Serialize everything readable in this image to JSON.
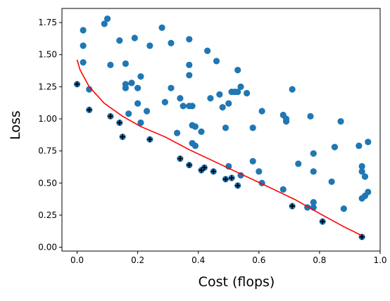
{
  "chart_data": {
    "type": "scatter",
    "xlabel": "Cost (flops)",
    "ylabel": "Loss",
    "xlim": [
      -0.05,
      1.0
    ],
    "ylim": [
      -0.03,
      1.86
    ],
    "xticks": [
      "0.0",
      "0.2",
      "0.4",
      "0.6",
      "0.8",
      "1.0"
    ],
    "yticks": [
      "0.00",
      "0.25",
      "0.50",
      "0.75",
      "1.00",
      "1.25",
      "1.50",
      "1.75"
    ],
    "grid": false,
    "colors": {
      "points": "#1f77b4",
      "pareto_marker": "#000000",
      "frontier": "#ff0000"
    },
    "series": [
      {
        "role": "samples",
        "points": [
          [
            0.02,
            1.69
          ],
          [
            0.1,
            1.78
          ],
          [
            0.09,
            1.74
          ],
          [
            0.02,
            1.57
          ],
          [
            0.02,
            1.44
          ],
          [
            0.04,
            1.23
          ],
          [
            0.14,
            1.61
          ],
          [
            0.19,
            1.63
          ],
          [
            0.28,
            1.71
          ],
          [
            0.24,
            1.57
          ],
          [
            0.11,
            1.42
          ],
          [
            0.16,
            1.43
          ],
          [
            0.31,
            1.59
          ],
          [
            0.37,
            1.62
          ],
          [
            0.43,
            1.53
          ],
          [
            0.46,
            1.45
          ],
          [
            0.37,
            1.42
          ],
          [
            0.37,
            1.34
          ],
          [
            0.21,
            1.33
          ],
          [
            0.16,
            1.27
          ],
          [
            0.18,
            1.28
          ],
          [
            0.2,
            1.24
          ],
          [
            0.16,
            1.24
          ],
          [
            0.31,
            1.24
          ],
          [
            0.34,
            1.16
          ],
          [
            0.35,
            1.1
          ],
          [
            0.37,
            1.1
          ],
          [
            0.38,
            1.1
          ],
          [
            0.29,
            1.13
          ],
          [
            0.2,
            1.12
          ],
          [
            0.53,
            1.38
          ],
          [
            0.54,
            1.25
          ],
          [
            0.51,
            1.21
          ],
          [
            0.52,
            1.21
          ],
          [
            0.53,
            1.21
          ],
          [
            0.56,
            1.2
          ],
          [
            0.47,
            1.19
          ],
          [
            0.44,
            1.16
          ],
          [
            0.5,
            1.12
          ],
          [
            0.48,
            1.09
          ],
          [
            0.23,
            1.06
          ],
          [
            0.17,
            1.04
          ],
          [
            0.61,
            1.06
          ],
          [
            0.68,
            1.03
          ],
          [
            0.69,
            1.0
          ],
          [
            0.69,
            0.98
          ],
          [
            0.71,
            1.23
          ],
          [
            0.77,
            1.02
          ],
          [
            0.87,
            0.98
          ],
          [
            0.58,
            0.93
          ],
          [
            0.49,
            0.93
          ],
          [
            0.21,
            0.97
          ],
          [
            0.38,
            0.95
          ],
          [
            0.39,
            0.94
          ],
          [
            0.41,
            0.9
          ],
          [
            0.33,
            0.89
          ],
          [
            0.96,
            0.82
          ],
          [
            0.93,
            0.79
          ],
          [
            0.85,
            0.78
          ],
          [
            0.78,
            0.73
          ],
          [
            0.38,
            0.81
          ],
          [
            0.39,
            0.79
          ],
          [
            0.58,
            0.67
          ],
          [
            0.73,
            0.65
          ],
          [
            0.95,
            0.55
          ],
          [
            0.94,
            0.59
          ],
          [
            0.94,
            0.63
          ],
          [
            0.6,
            0.59
          ],
          [
            0.78,
            0.59
          ],
          [
            0.5,
            0.63
          ],
          [
            0.54,
            0.56
          ],
          [
            0.84,
            0.51
          ],
          [
            0.61,
            0.5
          ],
          [
            0.68,
            0.45
          ],
          [
            0.95,
            0.4
          ],
          [
            0.96,
            0.43
          ],
          [
            0.94,
            0.38
          ],
          [
            0.78,
            0.35
          ],
          [
            0.76,
            0.31
          ],
          [
            0.78,
            0.31
          ],
          [
            0.88,
            0.3
          ]
        ]
      },
      {
        "role": "pareto-points",
        "points": [
          [
            0.0,
            1.27
          ],
          [
            0.04,
            1.07
          ],
          [
            0.11,
            1.02
          ],
          [
            0.14,
            0.97
          ],
          [
            0.15,
            0.86
          ],
          [
            0.24,
            0.84
          ],
          [
            0.34,
            0.69
          ],
          [
            0.37,
            0.64
          ],
          [
            0.41,
            0.6
          ],
          [
            0.42,
            0.62
          ],
          [
            0.45,
            0.59
          ],
          [
            0.49,
            0.53
          ],
          [
            0.51,
            0.54
          ],
          [
            0.53,
            0.48
          ],
          [
            0.71,
            0.32
          ],
          [
            0.81,
            0.2
          ],
          [
            0.94,
            0.08
          ]
        ]
      },
      {
        "role": "frontier-line",
        "points": [
          [
            0.0,
            1.46
          ],
          [
            0.01,
            1.38
          ],
          [
            0.04,
            1.25
          ],
          [
            0.09,
            1.12
          ],
          [
            0.15,
            1.02
          ],
          [
            0.21,
            0.94
          ],
          [
            0.29,
            0.86
          ],
          [
            0.37,
            0.76
          ],
          [
            0.46,
            0.66
          ],
          [
            0.55,
            0.56
          ],
          [
            0.64,
            0.46
          ],
          [
            0.72,
            0.37
          ],
          [
            0.81,
            0.25
          ],
          [
            0.88,
            0.16
          ],
          [
            0.94,
            0.09
          ]
        ]
      }
    ]
  }
}
